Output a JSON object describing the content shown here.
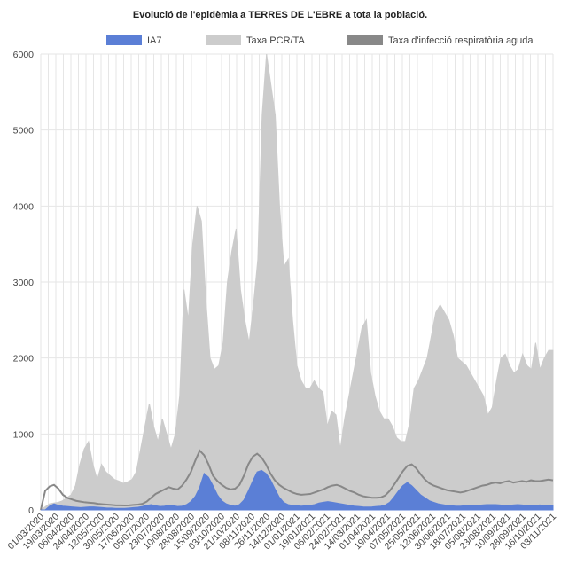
{
  "chart_data": {
    "type": "area",
    "title": "Evolució de l'epidèmia a TERRES DE L'EBRE a tota la població.",
    "ylim": [
      0,
      6000
    ],
    "y_ticks": [
      0,
      1000,
      2000,
      3000,
      4000,
      5000,
      6000
    ],
    "grid": true,
    "legend_position": "top-center",
    "x_tick_labels": [
      "01/03/2020",
      "19/03/2020",
      "06/04/2020",
      "24/04/2020",
      "12/05/2020",
      "30/05/2020",
      "17/06/2020",
      "05/07/2020",
      "23/07/2020",
      "10/08/2020",
      "28/08/2020",
      "15/09/2020",
      "03/10/2020",
      "21/10/2020",
      "08/11/2020",
      "26/11/2020",
      "14/12/2020",
      "01/01/2021",
      "19/01/2021",
      "06/02/2021",
      "24/02/2021",
      "14/03/2021",
      "01/04/2021",
      "19/04/2021",
      "07/05/2021",
      "25/05/2021",
      "12/06/2021",
      "30/06/2021",
      "18/07/2021",
      "05/08/2021",
      "23/08/2021",
      "10/09/2021",
      "28/09/2021",
      "16/10/2021",
      "03/11/2021"
    ],
    "x_step_days": 9,
    "series": [
      {
        "name": "Taxa PCR/TA",
        "color": "#cccccc",
        "kind": "area",
        "values": [
          0,
          40,
          80,
          90,
          100,
          120,
          160,
          200,
          320,
          600,
          800,
          900,
          600,
          400,
          600,
          500,
          450,
          400,
          380,
          350,
          370,
          400,
          500,
          800,
          1100,
          1400,
          1100,
          900,
          1200,
          1000,
          800,
          1000,
          1500,
          2900,
          2500,
          3500,
          4000,
          3800,
          2800,
          2000,
          1850,
          1900,
          2200,
          3000,
          3400,
          3700,
          2900,
          2500,
          2200,
          2700,
          3300,
          5200,
          6000,
          5600,
          5200,
          4000,
          3200,
          3300,
          2500,
          1900,
          1700,
          1600,
          1600,
          1700,
          1600,
          1550,
          1100,
          1300,
          1250,
          800,
          1200,
          1500,
          1800,
          2100,
          2400,
          2500,
          1800,
          1500,
          1300,
          1200,
          1200,
          1100,
          950,
          900,
          900,
          1150,
          1600,
          1700,
          1850,
          2000,
          2300,
          2600,
          2700,
          2600,
          2500,
          2300,
          2000,
          1950,
          1900,
          1800,
          1700,
          1600,
          1500,
          1250,
          1350,
          1700,
          2000,
          2050,
          1900,
          1800,
          1850,
          2050,
          1900,
          1850,
          2200,
          1850,
          2000,
          2100,
          2100
        ]
      },
      {
        "name": "Taxa d'infecció respiratòria aguda",
        "color": "#888888",
        "kind": "line",
        "values": [
          0,
          250,
          310,
          330,
          280,
          200,
          160,
          140,
          120,
          110,
          100,
          95,
          90,
          80,
          75,
          70,
          65,
          60,
          60,
          58,
          60,
          65,
          70,
          80,
          110,
          160,
          210,
          240,
          270,
          300,
          280,
          270,
          320,
          400,
          500,
          650,
          780,
          720,
          600,
          450,
          380,
          330,
          290,
          270,
          280,
          330,
          450,
          600,
          700,
          740,
          690,
          600,
          480,
          390,
          330,
          290,
          260,
          230,
          210,
          200,
          205,
          210,
          230,
          250,
          270,
          300,
          320,
          330,
          310,
          280,
          250,
          230,
          200,
          180,
          170,
          160,
          160,
          165,
          190,
          250,
          330,
          420,
          510,
          580,
          600,
          550,
          470,
          400,
          350,
          320,
          300,
          280,
          260,
          250,
          240,
          230,
          240,
          260,
          280,
          300,
          320,
          330,
          350,
          360,
          350,
          370,
          380,
          360,
          370,
          380,
          370,
          390,
          380,
          380,
          390,
          400,
          390
        ]
      },
      {
        "name": "IA7",
        "color": "#5b7fd6",
        "kind": "area",
        "values": [
          0,
          0,
          50,
          80,
          60,
          50,
          45,
          40,
          35,
          30,
          35,
          40,
          40,
          35,
          30,
          25,
          25,
          20,
          20,
          20,
          25,
          30,
          35,
          45,
          60,
          70,
          55,
          45,
          50,
          60,
          55,
          45,
          50,
          70,
          110,
          180,
          300,
          480,
          430,
          320,
          200,
          120,
          80,
          60,
          50,
          70,
          130,
          250,
          380,
          500,
          520,
          480,
          400,
          280,
          170,
          100,
          70,
          60,
          55,
          50,
          55,
          60,
          70,
          90,
          100,
          110,
          100,
          90,
          80,
          70,
          60,
          50,
          45,
          40,
          38,
          40,
          45,
          50,
          65,
          100,
          170,
          250,
          320,
          360,
          320,
          260,
          200,
          160,
          120,
          100,
          80,
          70,
          60,
          55,
          50,
          50,
          55,
          60,
          60,
          60,
          65,
          70,
          70,
          70,
          65,
          60,
          60,
          65,
          70,
          65,
          60,
          60,
          60,
          65,
          60,
          60,
          60
        ]
      }
    ]
  }
}
